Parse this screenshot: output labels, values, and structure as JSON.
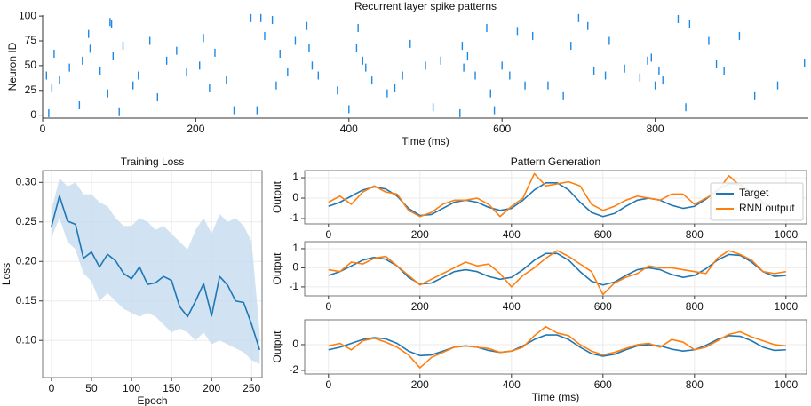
{
  "chart_data": [
    {
      "type": "raster",
      "title": "Recurrent layer spike patterns",
      "xlabel": "Time (ms)",
      "ylabel": "Neuron ID",
      "color": "#1e88e5",
      "x": [
        5,
        8,
        12,
        15,
        22,
        35,
        48,
        52,
        60,
        62,
        75,
        85,
        88,
        90,
        92,
        100,
        105,
        118,
        125,
        140,
        150,
        162,
        175,
        188,
        205,
        210,
        218,
        225,
        240,
        250,
        272,
        280,
        285,
        290,
        300,
        305,
        310,
        320,
        330,
        345,
        348,
        352,
        360,
        385,
        400,
        410,
        412,
        418,
        422,
        430,
        450,
        460,
        470,
        480,
        500,
        510,
        520,
        545,
        548,
        550,
        555,
        565,
        580,
        585,
        590,
        600,
        610,
        620,
        630,
        640,
        660,
        680,
        690,
        700,
        712,
        720,
        735,
        740,
        760,
        780,
        790,
        795,
        800,
        805,
        810,
        830,
        840,
        845,
        870,
        880,
        890,
        910,
        930,
        960,
        995
      ],
      "y": [
        40,
        2,
        28,
        62,
        36,
        48,
        10,
        55,
        82,
        67,
        45,
        22,
        94,
        92,
        60,
        3,
        70,
        30,
        40,
        75,
        18,
        55,
        65,
        43,
        50,
        78,
        28,
        63,
        35,
        5,
        98,
        5,
        98,
        80,
        96,
        30,
        62,
        44,
        75,
        90,
        68,
        50,
        40,
        25,
        6,
        68,
        88,
        55,
        48,
        35,
        22,
        28,
        40,
        72,
        50,
        8,
        55,
        2,
        70,
        48,
        60,
        40,
        88,
        22,
        5,
        50,
        40,
        85,
        30,
        80,
        30,
        20,
        70,
        98,
        90,
        45,
        40,
        75,
        47,
        38,
        55,
        58,
        30,
        45,
        35,
        97,
        8,
        92,
        75,
        52,
        45,
        80,
        20,
        30,
        53
      ],
      "xlim": [
        0,
        1000
      ],
      "ylim": [
        -3,
        101
      ],
      "xticks": [
        0,
        200,
        400,
        600,
        800
      ],
      "yticks": [
        0,
        25,
        50,
        75,
        100
      ],
      "grid": false
    },
    {
      "type": "line",
      "title": "Training Loss",
      "xlabel": "Epoch",
      "ylabel": "Loss",
      "grid": true,
      "x": [
        0,
        10,
        20,
        30,
        40,
        50,
        60,
        70,
        80,
        90,
        100,
        110,
        120,
        130,
        140,
        150,
        160,
        170,
        180,
        190,
        200,
        210,
        220,
        230,
        240,
        250,
        260
      ],
      "series": [
        {
          "color": "#1f77b4",
          "band_color": "#c6dbef",
          "values": [
            0.244,
            0.283,
            0.251,
            0.247,
            0.204,
            0.212,
            0.193,
            0.209,
            0.201,
            0.185,
            0.178,
            0.193,
            0.171,
            0.173,
            0.181,
            0.176,
            0.143,
            0.13,
            0.15,
            0.172,
            0.131,
            0.181,
            0.17,
            0.15,
            0.148,
            0.12,
            0.088
          ],
          "band_upper": [
            0.265,
            0.305,
            0.295,
            0.3,
            0.285,
            0.285,
            0.275,
            0.27,
            0.255,
            0.245,
            0.245,
            0.255,
            0.25,
            0.24,
            0.245,
            0.235,
            0.225,
            0.215,
            0.24,
            0.255,
            0.235,
            0.26,
            0.25,
            0.255,
            0.245,
            0.225,
            0.11
          ],
          "band_lower": [
            0.23,
            0.255,
            0.225,
            0.215,
            0.185,
            0.175,
            0.15,
            0.16,
            0.15,
            0.14,
            0.135,
            0.13,
            0.135,
            0.13,
            0.12,
            0.11,
            0.115,
            0.11,
            0.1,
            0.11,
            0.095,
            0.1,
            0.095,
            0.09,
            0.085,
            0.075,
            0.07
          ]
        }
      ],
      "xlim": [
        -11,
        263
      ],
      "ylim": [
        0.053,
        0.315
      ],
      "xticks": [
        0,
        50,
        100,
        150,
        200,
        250
      ],
      "yticks": [
        {
          "value": 0.1,
          "label": "0.10"
        },
        0.15,
        {
          "value": 0.2,
          "label": "0.20"
        },
        0.25,
        {
          "value": 0.3,
          "label": "0.30"
        }
      ]
    },
    {
      "type": "line",
      "title": "Pattern Generation",
      "ylabel": "Output",
      "grid": true,
      "legend": "upper right",
      "x": [
        0,
        25,
        50,
        75,
        100,
        125,
        150,
        175,
        200,
        225,
        250,
        275,
        300,
        325,
        350,
        375,
        400,
        425,
        450,
        475,
        500,
        525,
        550,
        575,
        600,
        625,
        650,
        675,
        700,
        725,
        750,
        775,
        800,
        825,
        850,
        875,
        900,
        925,
        950,
        975,
        1000
      ],
      "series": [
        {
          "name": "Target",
          "color": "#1f77b4",
          "values": [
            -0.4,
            -0.2,
            0.1,
            0.4,
            0.55,
            0.45,
            0.1,
            -0.5,
            -0.85,
            -0.8,
            -0.5,
            -0.2,
            -0.1,
            -0.2,
            -0.45,
            -0.6,
            -0.5,
            -0.1,
            0.4,
            0.75,
            0.75,
            0.4,
            -0.2,
            -0.7,
            -0.9,
            -0.75,
            -0.4,
            -0.1,
            0.0,
            -0.1,
            -0.35,
            -0.5,
            -0.4,
            -0.05,
            0.4,
            0.7,
            0.65,
            0.3,
            -0.2,
            -0.45,
            -0.4
          ]
        },
        {
          "name": "RNN output",
          "color": "#ff7f0e",
          "values": [
            -0.2,
            0.1,
            -0.3,
            0.3,
            0.6,
            0.3,
            0.2,
            -0.6,
            -0.9,
            -0.7,
            -0.3,
            -0.1,
            -0.1,
            0.0,
            -0.3,
            -0.9,
            -0.4,
            0.0,
            1.2,
            0.6,
            0.7,
            0.8,
            0.6,
            -0.3,
            -0.6,
            -0.4,
            -0.1,
            0.1,
            0.0,
            -0.1,
            0.2,
            0.2,
            -0.3,
            0.0,
            0.3,
            1.1,
            0.6,
            0.2,
            -0.3,
            -0.5,
            -0.4
          ]
        }
      ],
      "xlim": [
        -52,
        1045
      ],
      "ylim": [
        -1.26,
        1.35
      ],
      "xticks": [
        0,
        200,
        400,
        600,
        800,
        1000
      ],
      "yticks": [
        -1,
        0,
        1
      ]
    },
    {
      "type": "line",
      "ylabel": "Output",
      "grid": true,
      "x": [
        0,
        25,
        50,
        75,
        100,
        125,
        150,
        175,
        200,
        225,
        250,
        275,
        300,
        325,
        350,
        375,
        400,
        425,
        450,
        475,
        500,
        525,
        550,
        575,
        600,
        625,
        650,
        675,
        700,
        725,
        750,
        775,
        800,
        825,
        850,
        875,
        900,
        925,
        950,
        975,
        1000
      ],
      "series": [
        {
          "color": "#1f77b4",
          "values": [
            -0.4,
            -0.2,
            0.1,
            0.4,
            0.55,
            0.45,
            0.1,
            -0.5,
            -0.85,
            -0.8,
            -0.5,
            -0.2,
            -0.1,
            -0.2,
            -0.45,
            -0.6,
            -0.5,
            -0.1,
            0.4,
            0.75,
            0.75,
            0.4,
            -0.2,
            -0.7,
            -0.9,
            -0.75,
            -0.4,
            -0.1,
            0.0,
            -0.1,
            -0.35,
            -0.5,
            -0.4,
            -0.05,
            0.4,
            0.7,
            0.65,
            0.3,
            -0.2,
            -0.45,
            -0.4
          ]
        },
        {
          "color": "#ff7f0e",
          "values": [
            -0.1,
            -0.2,
            0.3,
            0.2,
            0.5,
            0.6,
            0.1,
            -0.4,
            -0.9,
            -0.6,
            -0.3,
            0.0,
            0.3,
            0.1,
            0.2,
            -0.3,
            -1.0,
            -0.4,
            0.0,
            0.5,
            0.9,
            0.6,
            0.2,
            -0.2,
            -1.4,
            -0.8,
            -0.5,
            -0.3,
            0.1,
            0.0,
            0.0,
            -0.1,
            -0.2,
            -0.3,
            0.5,
            0.9,
            0.7,
            0.4,
            -0.2,
            -0.3,
            -0.2
          ]
        }
      ],
      "xlim": [
        -52,
        1045
      ],
      "ylim": [
        -1.47,
        1.37
      ],
      "xticks": [
        0,
        200,
        400,
        600,
        800,
        1000
      ],
      "yticks": [
        -1,
        0,
        1
      ]
    },
    {
      "type": "line",
      "ylabel": "Output",
      "xlabel": "Time (ms)",
      "grid": true,
      "x": [
        0,
        25,
        50,
        75,
        100,
        125,
        150,
        175,
        200,
        225,
        250,
        275,
        300,
        325,
        350,
        375,
        400,
        425,
        450,
        475,
        500,
        525,
        550,
        575,
        600,
        625,
        650,
        675,
        700,
        725,
        750,
        775,
        800,
        825,
        850,
        875,
        900,
        925,
        950,
        975,
        1000
      ],
      "series": [
        {
          "color": "#1f77b4",
          "values": [
            -0.4,
            -0.2,
            0.1,
            0.4,
            0.55,
            0.45,
            0.1,
            -0.5,
            -0.85,
            -0.8,
            -0.5,
            -0.2,
            -0.1,
            -0.2,
            -0.45,
            -0.6,
            -0.5,
            -0.1,
            0.4,
            0.75,
            0.75,
            0.4,
            -0.2,
            -0.7,
            -0.9,
            -0.75,
            -0.4,
            -0.1,
            0.0,
            -0.1,
            -0.35,
            -0.5,
            -0.4,
            -0.05,
            0.4,
            0.7,
            0.65,
            0.3,
            -0.2,
            -0.45,
            -0.4
          ]
        },
        {
          "color": "#ff7f0e",
          "values": [
            -0.1,
            0.1,
            -0.4,
            0.3,
            0.5,
            0.2,
            -0.2,
            -0.8,
            -1.8,
            -1.0,
            -0.6,
            -0.2,
            -0.1,
            -0.2,
            -0.3,
            -0.6,
            -0.5,
            -0.2,
            0.7,
            1.4,
            0.9,
            0.7,
            0.0,
            -0.5,
            -0.8,
            -0.6,
            -0.3,
            0.0,
            0.1,
            -0.2,
            0.4,
            0.2,
            -0.4,
            -0.2,
            0.3,
            0.8,
            1.0,
            0.6,
            0.3,
            0.0,
            -0.1
          ]
        }
      ],
      "xlim": [
        -52,
        1045
      ],
      "ylim": [
        -2.28,
        1.93
      ],
      "xticks": [
        0,
        200,
        400,
        600,
        800,
        1000
      ],
      "yticks": [
        -2,
        0
      ]
    }
  ]
}
